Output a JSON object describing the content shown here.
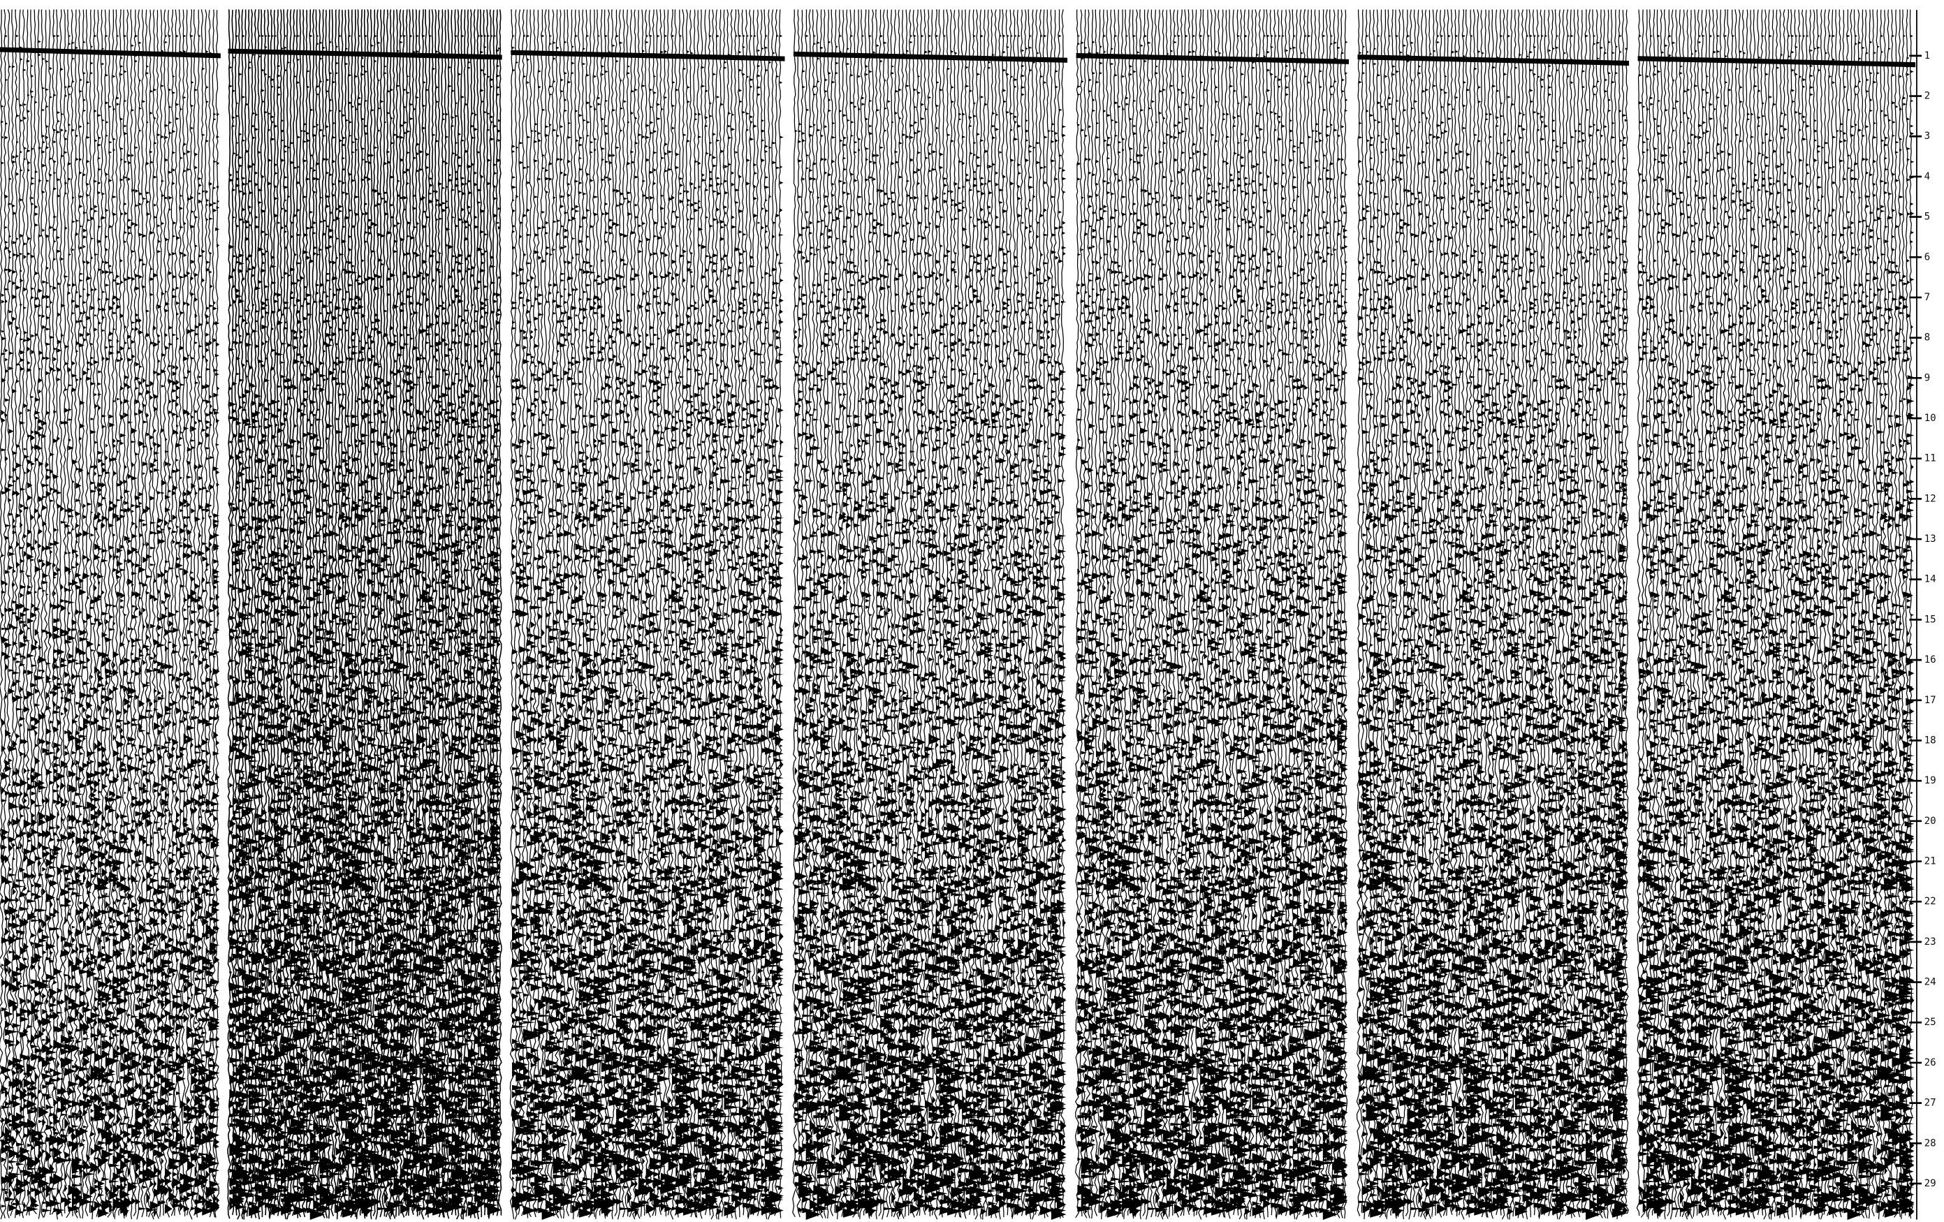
{
  "time_axis": {
    "labels": [
      "1",
      "2",
      "3",
      "4",
      "5",
      "6",
      "7",
      "8",
      "9",
      "10",
      "11",
      "12",
      "13",
      "14",
      "15",
      "16",
      "17",
      "18",
      "19",
      "20",
      "21",
      "22",
      "23",
      "24",
      "25",
      "26",
      "27",
      "28",
      "29"
    ]
  }
}
